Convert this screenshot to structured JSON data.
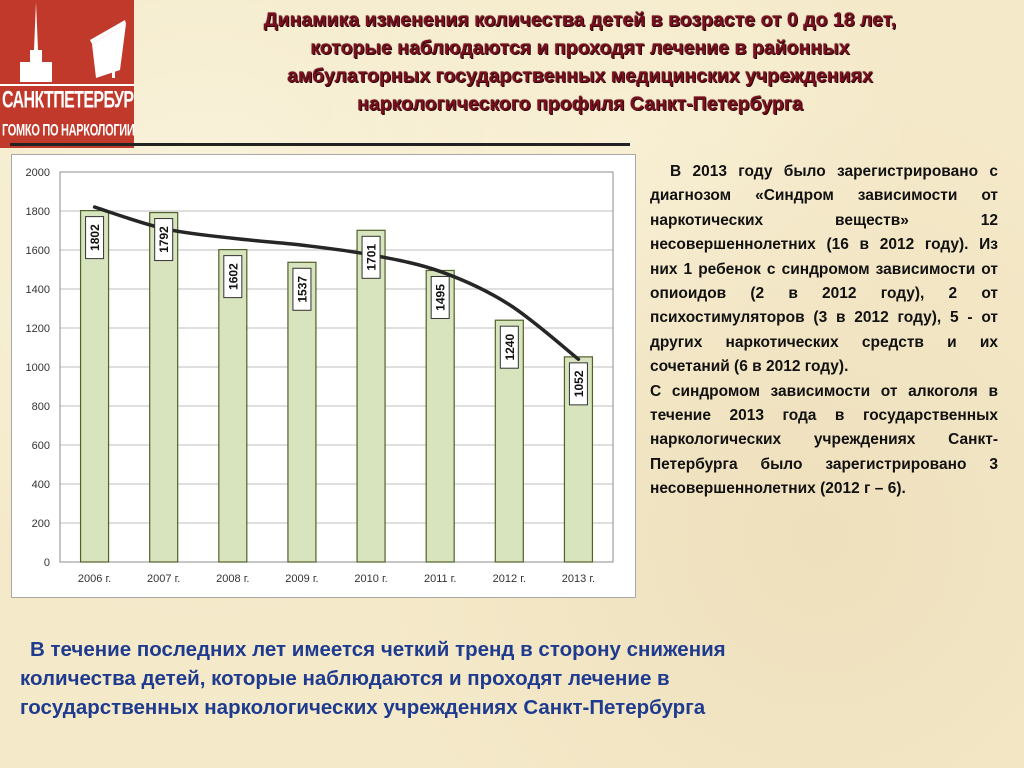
{
  "logo": {
    "line1": "САНКТПЕТЕРБУРГ",
    "line2": "ГОМКО ПО НАРКОЛОГИИ"
  },
  "title": {
    "line1": "Динамика изменения количества детей в возрасте от 0 до 18 лет,",
    "line2": "которые наблюдаются и проходят лечение в районных",
    "line3": "амбулаторных  государственных медицинских учреждениях",
    "line4": "наркологического профиля  Санкт-Петербурга"
  },
  "side_text": {
    "p1": "В 2013 году было зарегистрировано с диагнозом «Синдром зависимости от наркотических веществ» 12 несовершеннолетних (16 в 2012 году). Из них 1 ребенок с синдромом зависимости от опиоидов (2 в 2012 году), 2 от психостимуляторов (3 в 2012 году), 5 - от других наркотических средств и их сочетаний (6 в 2012 году).",
    "p2": "С синдромом зависимости от алкоголя в течение 2013 года в государственных наркологических учреждениях Санкт-Петербурга было зарегистрировано 3 несовершеннолетних (2012 г – 6)."
  },
  "bottom_text": {
    "line1": "В течение последних лет имеется  четкий  тренд в сторону снижения",
    "line2": "количества детей, которые наблюдаются и проходят лечение в",
    "line3": "государственных наркологических  учреждениях  Санкт-Петербурга"
  },
  "colors": {
    "title": "#7a0f1e",
    "logo_bg": "#c0392b",
    "bar_fill": "#d7e4bd",
    "bar_stroke": "#4f6228",
    "trend_line": "#262626",
    "bottom_text": "#1f3b8f"
  },
  "chart_data": {
    "type": "bar",
    "categories": [
      "2006 г.",
      "2007 г.",
      "2008 г.",
      "2009 г.",
      "2010 г.",
      "2011 г.",
      "2012 г.",
      "2013 г."
    ],
    "values": [
      1802,
      1792,
      1602,
      1537,
      1701,
      1495,
      1240,
      1052
    ],
    "data_labels": [
      "1802",
      "1792",
      "1602",
      "1537",
      "1701",
      "1495",
      "1240",
      "1052"
    ],
    "ylim": [
      0,
      2000
    ],
    "yticks": [
      "0",
      "200",
      "400",
      "600",
      "800",
      "1000",
      "1200",
      "1400",
      "1600",
      "1800",
      "2000"
    ],
    "grid": true,
    "trend_line": true,
    "trend_values": [
      1820,
      1710,
      1660,
      1625,
      1575,
      1490,
      1320,
      1040
    ]
  }
}
